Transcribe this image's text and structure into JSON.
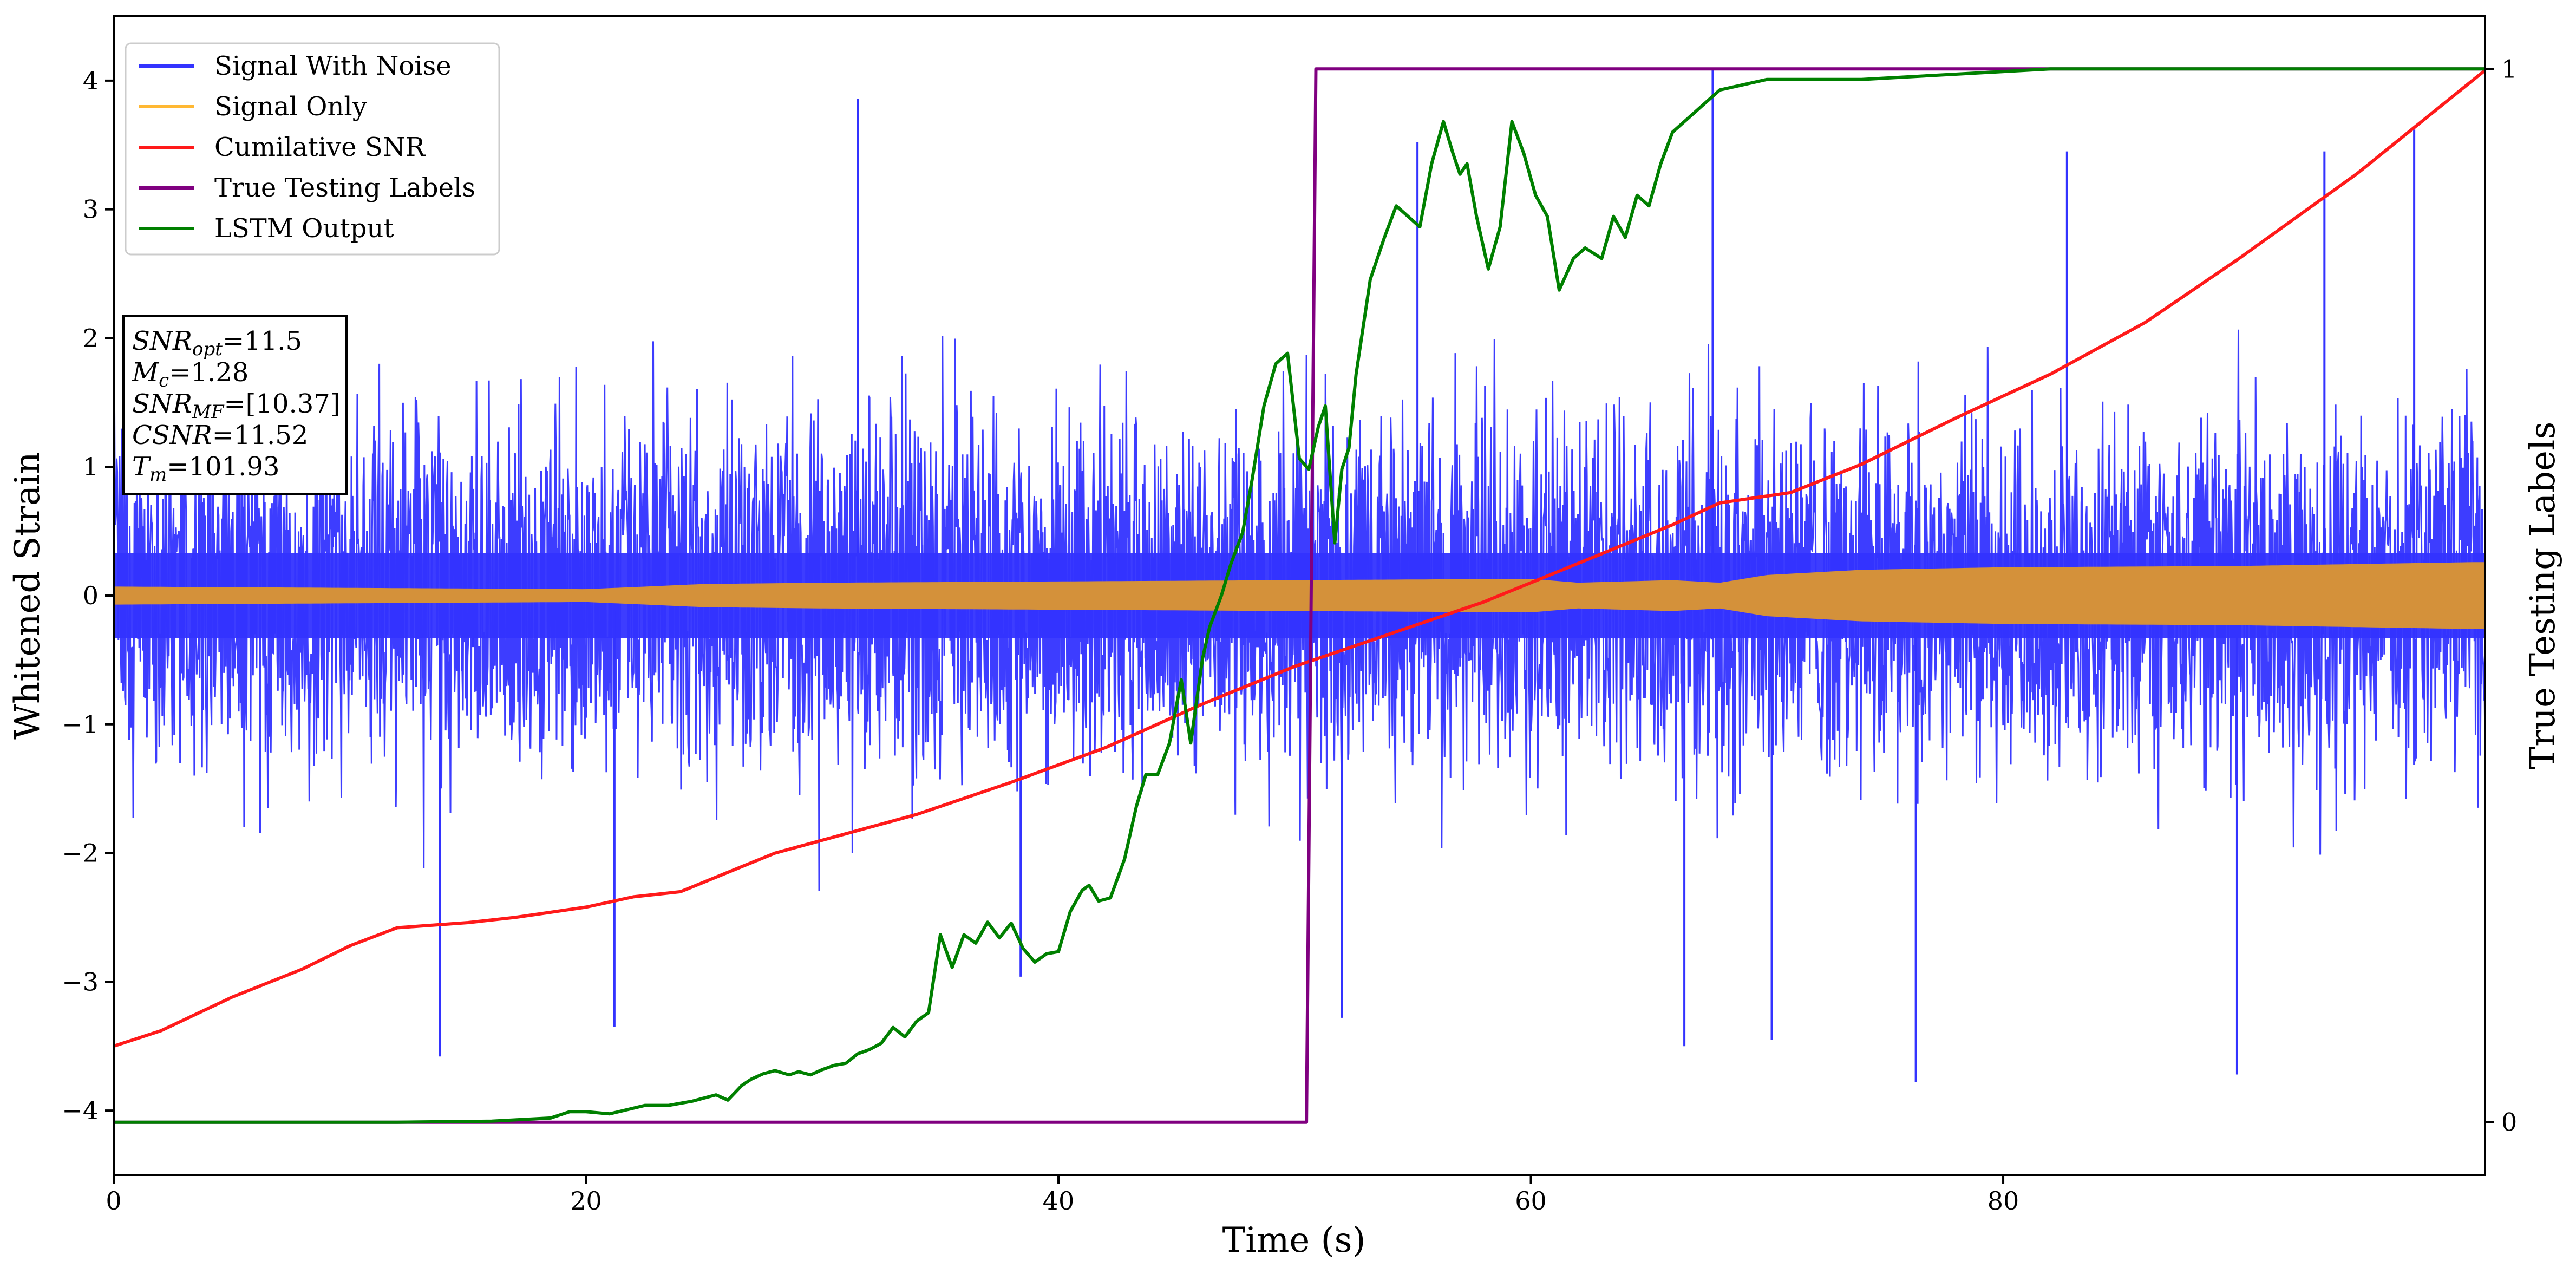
{
  "chart_data": {
    "type": "line",
    "xlabel": "Time (s)",
    "ylabel": "Whitened Strain",
    "ylabel_right": "True Testing Labels",
    "xlim": [
      0,
      100.4
    ],
    "ylim": [
      -4.5,
      4.5
    ],
    "ylim_right": [
      -0.05,
      1.05
    ],
    "x_ticks": [
      0,
      20,
      40,
      60,
      80
    ],
    "y_ticks": [
      -4,
      -3,
      -2,
      -1,
      0,
      1,
      2,
      3,
      4
    ],
    "y_ticks_right": [
      0,
      1
    ],
    "grid": false,
    "legend_position": "top-left",
    "legend": [
      {
        "label": "Signal With Noise",
        "color": "#3333ff"
      },
      {
        "label": "Signal Only",
        "color": "#ffb833"
      },
      {
        "label": "Cumilative SNR",
        "color": "#ff1a1a"
      },
      {
        "label": "True Testing Labels",
        "color": "#800080"
      },
      {
        "label": "LSTM Output",
        "color": "#008000"
      }
    ],
    "annotation": [
      {
        "base": "SNR",
        "sub": "opt",
        "value": "=11.5"
      },
      {
        "base": "M",
        "sub": "c",
        "value": "=1.28"
      },
      {
        "base": "SNR",
        "sub": "MF",
        "value": "=[10.37]"
      },
      {
        "base": "CSNR",
        "sub": "",
        "value": "=11.52"
      },
      {
        "base": "T",
        "sub": "m",
        "value": "=101.93"
      }
    ],
    "series": [
      {
        "name": "Signal With Noise",
        "axis": "left",
        "color": "#3333ff",
        "description": "dense whitened-strain noise band",
        "core_amplitude": 2.2,
        "x": [
          13.8,
          15.2,
          21.2,
          31.5,
          38.4,
          52.0,
          55.2,
          66.5,
          67.7,
          70.2,
          76.3,
          82.7,
          89.9,
          93.6,
          97.4
        ],
        "y": [
          -3.58,
          -0.4,
          -3.35,
          3.86,
          -2.96,
          -3.28,
          3.52,
          -3.5,
          4.1,
          -3.45,
          -3.78,
          3.45,
          -3.72,
          3.45,
          3.62
        ]
      },
      {
        "name": "Signal Only",
        "axis": "left",
        "color": "#ffb833",
        "envelope_x": [
          0,
          10,
          20,
          25,
          30,
          40,
          50,
          60,
          62,
          66,
          68,
          70,
          74,
          80,
          90,
          100
        ],
        "envelope_y": [
          0.07,
          0.06,
          0.05,
          0.09,
          0.1,
          0.11,
          0.12,
          0.13,
          0.1,
          0.12,
          0.1,
          0.16,
          0.2,
          0.22,
          0.23,
          0.26
        ]
      },
      {
        "name": "Cumilative SNR",
        "axis": "left",
        "color": "#ff1a1a",
        "x": [
          0,
          2,
          5,
          8,
          10,
          12,
          15,
          17,
          20,
          22,
          24,
          26,
          28,
          30,
          34,
          38,
          42,
          46,
          50,
          54,
          58,
          62,
          66,
          68,
          71,
          74,
          78,
          82,
          86,
          90,
          95,
          100.4
        ],
        "y": [
          -3.5,
          -3.38,
          -3.12,
          -2.9,
          -2.72,
          -2.58,
          -2.54,
          -2.5,
          -2.42,
          -2.34,
          -2.3,
          -2.15,
          -2.0,
          -1.9,
          -1.7,
          -1.45,
          -1.18,
          -0.85,
          -0.55,
          -0.3,
          -0.05,
          0.25,
          0.55,
          0.72,
          0.8,
          1.02,
          1.38,
          1.72,
          2.12,
          2.62,
          3.28,
          4.08
        ]
      },
      {
        "name": "True Testing Labels",
        "axis": "right",
        "color": "#800080",
        "x": [
          0,
          50.5,
          50.9,
          100.4
        ],
        "y": [
          0,
          0,
          1,
          1
        ]
      },
      {
        "name": "LSTM Output",
        "axis": "right",
        "color": "#008000",
        "x": [
          0,
          12,
          16,
          18.5,
          19.3,
          20.0,
          21.0,
          22.5,
          23.5,
          24.5,
          25.5,
          26.0,
          26.6,
          27.0,
          27.5,
          28.0,
          28.6,
          29.0,
          29.5,
          30.0,
          30.5,
          31.0,
          31.5,
          32.0,
          32.5,
          33.0,
          33.5,
          34.0,
          34.5,
          35.0,
          35.5,
          36.0,
          36.5,
          37.0,
          37.5,
          38.0,
          38.5,
          39.0,
          39.5,
          40.0,
          40.5,
          41.0,
          41.3,
          41.7,
          42.2,
          42.8,
          43.3,
          43.7,
          44.2,
          44.7,
          45.2,
          45.6,
          46.1,
          46.4,
          46.9,
          47.3,
          47.8,
          48.2,
          48.7,
          49.2,
          49.7,
          50.2,
          50.6,
          51.0,
          51.3,
          51.7,
          52.0,
          52.3,
          52.6,
          53.2,
          53.8,
          54.3,
          54.8,
          55.3,
          55.8,
          56.3,
          56.7,
          57.0,
          57.3,
          57.7,
          58.2,
          58.7,
          59.2,
          59.7,
          60.2,
          60.7,
          61.2,
          61.8,
          62.3,
          63.0,
          63.5,
          64.0,
          64.5,
          65.0,
          65.5,
          66.0,
          67.0,
          68.0,
          70.0,
          74.0,
          78.0,
          82.0,
          90.0,
          100.4
        ],
        "y": [
          0.0,
          0.0,
          0.001,
          0.004,
          0.01,
          0.01,
          0.008,
          0.016,
          0.016,
          0.02,
          0.026,
          0.021,
          0.035,
          0.041,
          0.046,
          0.049,
          0.045,
          0.048,
          0.045,
          0.05,
          0.054,
          0.056,
          0.065,
          0.069,
          0.075,
          0.09,
          0.081,
          0.096,
          0.104,
          0.178,
          0.147,
          0.178,
          0.17,
          0.19,
          0.175,
          0.189,
          0.165,
          0.152,
          0.16,
          0.162,
          0.2,
          0.22,
          0.225,
          0.21,
          0.213,
          0.25,
          0.3,
          0.33,
          0.33,
          0.36,
          0.42,
          0.36,
          0.44,
          0.47,
          0.5,
          0.53,
          0.56,
          0.61,
          0.68,
          0.72,
          0.73,
          0.63,
          0.62,
          0.66,
          0.68,
          0.55,
          0.62,
          0.64,
          0.71,
          0.8,
          0.84,
          0.87,
          0.86,
          0.85,
          0.91,
          0.95,
          0.92,
          0.9,
          0.91,
          0.86,
          0.81,
          0.85,
          0.95,
          0.92,
          0.88,
          0.86,
          0.79,
          0.82,
          0.83,
          0.82,
          0.86,
          0.84,
          0.88,
          0.87,
          0.91,
          0.94,
          0.96,
          0.98,
          0.99,
          0.99,
          0.995,
          1.0,
          1.0,
          1.0
        ]
      }
    ]
  }
}
